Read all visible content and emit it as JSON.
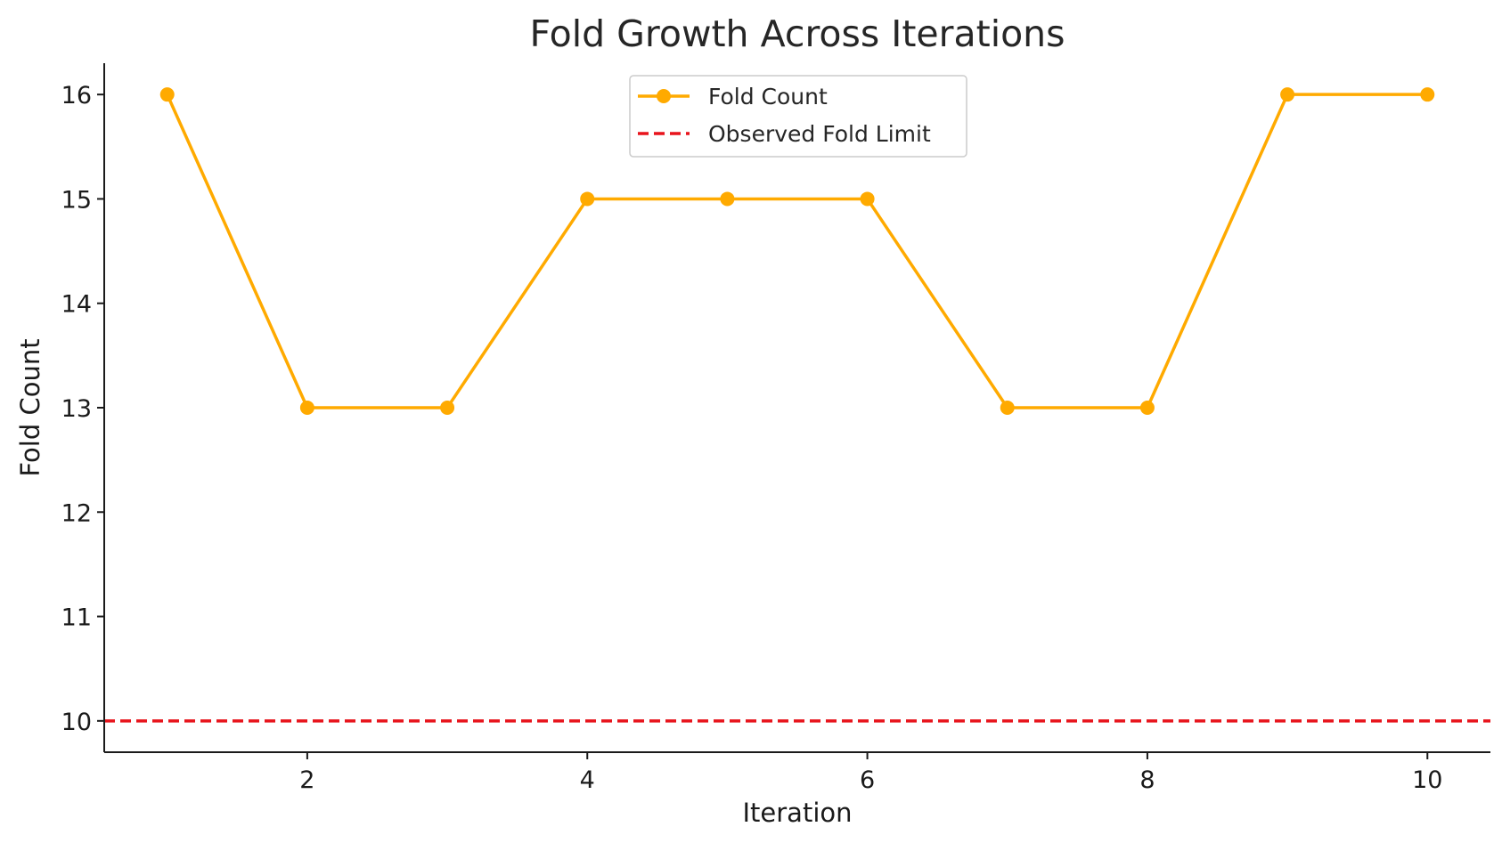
{
  "chart_data": {
    "type": "line",
    "title": "Fold Growth Across Iterations",
    "xlabel": "Iteration",
    "ylabel": "Fold Count",
    "x": [
      1,
      2,
      3,
      4,
      5,
      6,
      7,
      8,
      9,
      10
    ],
    "series": [
      {
        "name": "Fold Count",
        "values": [
          16,
          13,
          13,
          15,
          15,
          15,
          13,
          13,
          16,
          16
        ],
        "color": "#FFAA00",
        "marker": "circle"
      }
    ],
    "reference_lines": [
      {
        "name": "Observed Fold Limit",
        "y": 10,
        "color": "#E8141C",
        "style": "dashed"
      }
    ],
    "xlim": [
      0.55,
      10.45
    ],
    "ylim": [
      9.7,
      16.3
    ],
    "xticks": [
      2,
      4,
      6,
      8,
      10
    ],
    "yticks": [
      10,
      11,
      12,
      13,
      14,
      15,
      16
    ],
    "grid": false,
    "legend_position": "top-center"
  }
}
